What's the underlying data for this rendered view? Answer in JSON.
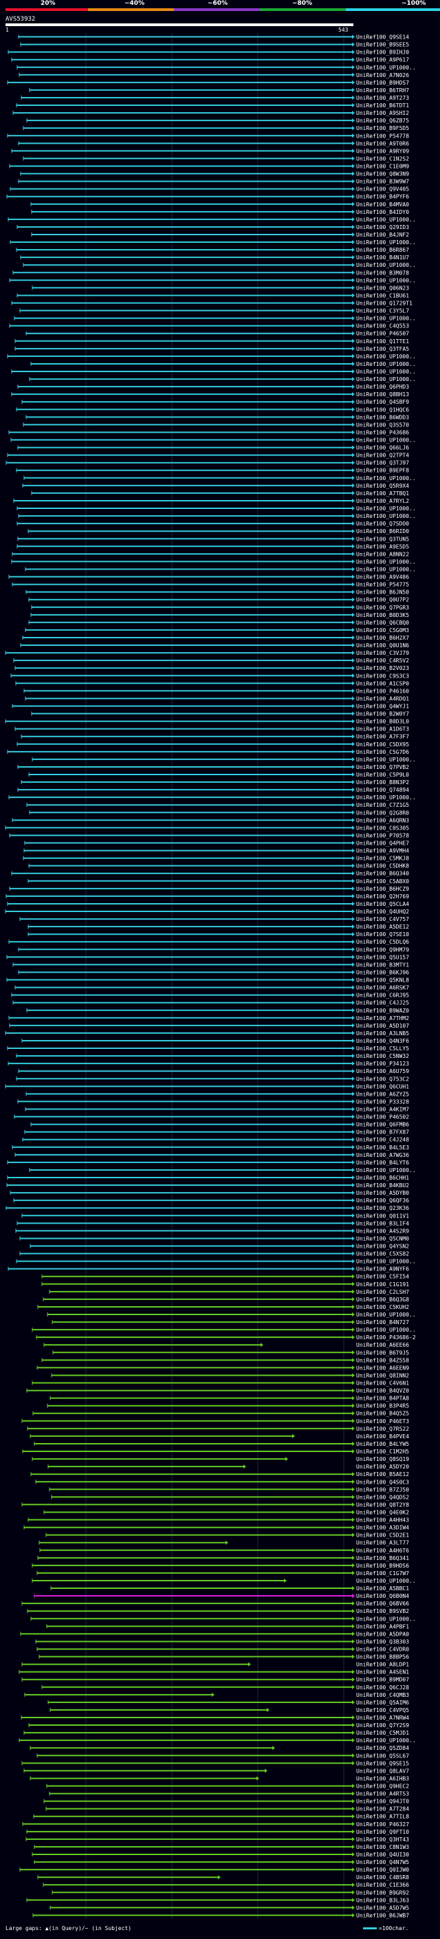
{
  "header": {
    "scale_labels": [
      "20%",
      "~40%",
      "~60%",
      "~80%",
      "~100%"
    ],
    "scale_colors": [
      "#e8102a",
      "#e88a12",
      "#8a38c8",
      "#1aa832",
      "#2ad0e6"
    ],
    "query_id": "AVS53932",
    "query_start": "1",
    "query_end": "543"
  },
  "footer": {
    "gaps_text": "Large gaps: ▲(in Query)/~ (in Subject)",
    "legend_text": "=100char."
  },
  "chart_data": {
    "type": "alignment",
    "query_length": 543,
    "row_labels": [
      "UniRef100_Q9SE14",
      "UniRef100_B9SEE5",
      "UniRef100_B9IHJ0",
      "UniRef100_A9P617",
      "UniRef100_UP1000..",
      "UniRef100_A7N026",
      "UniRef100_B9HDS7",
      "UniRef100_B6TRH7",
      "UniRef100_A9T273",
      "UniRef100_B6TDT1",
      "UniRef100_A9SHI2",
      "UniRef100_Q6ZB75",
      "UniRef100_B9F5D5",
      "UniRef100_P54778",
      "UniRef100_A9T0R6",
      "UniRef100_A9RY09",
      "UniRef100_C1N2S2",
      "UniRef100_C1E0M9",
      "UniRef100_Q8W3N9",
      "UniRef100_B3W9W7",
      "UniRef100_Q9V405",
      "UniRef100_B4PYF6",
      "UniRef100_B4MVA0",
      "UniRef100_B4IDY0",
      "UniRef100_UP1000..",
      "UniRef100_Q29ID3",
      "UniRef100_B4JNF2",
      "UniRef100_UP1000..",
      "UniRef100_B6R867",
      "UniRef100_B4N1U7",
      "UniRef100_UP1000..",
      "UniRef100_B3M078",
      "UniRef100_UP1000..",
      "UniRef100_Q06N23",
      "UniRef100_C1BU61",
      "UniRef100_Q1729T1",
      "UniRef100_C3Y5L7",
      "UniRef100_UP1000..",
      "UniRef100_C4Q553",
      "UniRef100_P46507",
      "UniRef100_Q1TTE1",
      "UniRef100_Q3TFA5",
      "UniRef100_UP1000..",
      "UniRef100_UP1000..",
      "UniRef100_UP1000..",
      "UniRef100_UP1000..",
      "UniRef100_Q6PHD3",
      "UniRef100_Q8BH13",
      "UniRef100_Q4SBF9",
      "UniRef100_Q1HQC6",
      "UniRef100_B6WDD3",
      "UniRef100_Q3S570",
      "UniRef100_P43686",
      "UniRef100_UP1000..",
      "UniRef100_Q66LJ6",
      "UniRef100_Q2TPT4",
      "UniRef100_Q3TJ97",
      "UniRef100_B9EPF8",
      "UniRef100_UP1000..",
      "UniRef100_Q5R9X4",
      "UniRef100_A7TBQ1",
      "UniRef100_A7RYL2",
      "UniRef100_UP1000..",
      "UniRef100_UP1000..",
      "UniRef100_Q7SDO0",
      "UniRef100_B6RID0",
      "UniRef100_Q3TUN5",
      "UniRef100_A9E5D5",
      "UniRef100_A8NN22",
      "UniRef100_UP1000..",
      "UniRef100_UP1000..",
      "UniRef100_A9V486",
      "UniRef100_P54775",
      "UniRef100_B6JN50",
      "UniRef100_Q0U7P2",
      "UniRef100_Q7PGR3",
      "UniRef100_B0D3K5",
      "UniRef100_Q6CBQ0",
      "UniRef100_C5G0M3",
      "UniRef100_B6H2X7",
      "UniRef100_Q0U1N6",
      "UniRef100_C3VJ79",
      "UniRef100_C4R5V2",
      "UniRef100_B2V023",
      "UniRef100_C9S3C3",
      "UniRef100_A1CSP0",
      "UniRef100_P46160",
      "UniRef100_A4RDQ1",
      "UniRef100_Q4WYJ1",
      "UniRef100_B2W0Y7",
      "UniRef100_B0D3L0",
      "UniRef100_A1D6T3",
      "UniRef100_A7F3F7",
      "UniRef100_C5DX95",
      "UniRef100_C5G7D6",
      "UniRef100_UP1000..",
      "UniRef100_Q7PVB2",
      "UniRef100_C5P9L0",
      "UniRef100_B8N3P2",
      "UniRef100_Q74894",
      "UniRef100_UP1000..",
      "UniRef100_C7Z1G5",
      "UniRef100_Q2G8R0",
      "UniRef100_A6QRN3",
      "UniRef100_C0S305",
      "UniRef100_P70578",
      "UniRef100_Q4PHE7",
      "UniRef100_A9VMH4",
      "UniRef100_C5MKJ8",
      "UniRef100_C5DHK8",
      "UniRef100_B6Q340",
      "UniRef100_C5ABX0",
      "UniRef100_B6HCZ9",
      "UniRef100_Q2H769",
      "UniRef100_Q5CLA4",
      "UniRef100_Q4UHQ2",
      "UniRef100_C4V757",
      "UniRef100_A5DE12",
      "UniRef100_Q7SE10",
      "UniRef100_C5DLQ6",
      "UniRef100_Q9HM79",
      "UniRef100_Q5U157",
      "UniRef100_B3MTY1",
      "UniRef100_B6KJ96",
      "UniRef100_Q5KNL8",
      "UniRef100_A6RSK7",
      "UniRef100_C6RJ95",
      "UniRef100_C4JJ25",
      "UniRef100_B9WAZ0",
      "UniRef100_A7THM2",
      "UniRef100_A5D107",
      "UniRef100_A3LNB5",
      "UniRef100_Q4N3F6",
      "UniRef100_C5LLY5",
      "UniRef100_C5NW32",
      "UniRef100_P34123",
      "UniRef100_A6U759",
      "UniRef100_Q753C2",
      "UniRef100_Q6CUH1",
      "UniRef100_A6ZYZ5",
      "UniRef100_P33328",
      "UniRef100_A4KIM7",
      "UniRef100_P46502",
      "UniRef100_Q6FMB6",
      "UniRef100_B7FX87",
      "UniRef100_C4J248",
      "UniRef100_B4L5E3",
      "UniRef100_A7WG36",
      "UniRef100_B4LYT6",
      "UniRef100_UP1000..",
      "UniRef100_B6CHH1",
      "UniRef100_B4KBU2",
      "UniRef100_A5DYB0",
      "UniRef100_Q6QF36",
      "UniRef100_Q23K36",
      "UniRef100_Q011V1",
      "UniRef100_B3LIF4",
      "UniRef100_A4S2R9",
      "UniRef100_Q5CNM0",
      "UniRef100_Q4YSN2",
      "UniRef100_C5XS82",
      "UniRef100_UP1000..",
      "UniRef100_A9NYF6",
      "UniRef100_C5FI54",
      "UniRef100_C1G191",
      "UniRef100_C2LSH7",
      "UniRef100_B6Q3G8",
      "UniRef100_C5KUH2",
      "UniRef100_UP1000..",
      "UniRef100_B4N727",
      "UniRef100_UP1000..",
      "UniRef100_P43686-2",
      "UniRef100_A6EE66",
      "UniRef100_B6T9J5",
      "UniRef100_B4Z558",
      "UniRef100_A6EEN9",
      "UniRef100_Q8INN2",
      "UniRef100_C4V6N1",
      "UniRef100_B4QVZ0",
      "UniRef100_B4PTA8",
      "UniRef100_B3P4R5",
      "UniRef100_B4Q5Z5",
      "UniRef100_P46ET3",
      "UniRef100_Q7RS22",
      "UniRef100_B4PVE4",
      "UniRef100_B4LYW5",
      "UniRef100_C1M2H5",
      "UniRef100_Q8SQ19",
      "UniRef100_A5DY20",
      "UniRef100_B5AE12",
      "UniRef100_Q4S0C3",
      "UniRef100_B7ZJ50",
      "UniRef100_Q4QDS2",
      "UniRef100_Q8T2Y8",
      "UniRef100_Q4E0K2",
      "UniRef100_A4HH43",
      "UniRef100_A3DIW4",
      "UniRef100_C5D2E1",
      "UniRef100_A3LT77",
      "UniRef100_A4H6T6",
      "UniRef100_B6Q341",
      "UniRef100_B9HDS6",
      "UniRef100_C1G7W7",
      "UniRef100_UP1000..",
      "UniRef100_A5BBC1",
      "UniRef100_Q6B0N4",
      "UniRef100_Q6BV66",
      "UniRef100_B9SVB2",
      "UniRef100_UP1000..",
      "UniRef100_A4PBF1",
      "UniRef100_A5DPA0",
      "UniRef100_Q3B303",
      "UniRef100_C4VDR0",
      "UniRef100_B8BP56",
      "UniRef100_A8LDP1",
      "UniRef100_A4SEN1",
      "UniRef100_B9MD07",
      "UniRef100_Q6CJ28",
      "UniRef100_C4QMB3",
      "UniRef100_Q5AIM6",
      "UniRef100_C4VPQ5",
      "UniRef100_A7NRW4",
      "UniRef100_Q7Y2S9",
      "UniRef100_C5MJD1",
      "UniRef100_UP1000..",
      "UniRef100_Q5ZD84",
      "UniRef100_Q5SL67",
      "UniRef100_Q9SE15",
      "UniRef100_Q8LAV7",
      "UniRef100_A6IHB3",
      "UniRef100_Q9HEC2",
      "UniRef100_A4RTS3",
      "UniRef100_Q94JT0",
      "UniRef100_A7T284",
      "UniRef100_A7TIL8",
      "UniRef100_P46327",
      "UniRef100_Q9FT10",
      "UniRef100_Q3HT43",
      "UniRef100_C8N1W3",
      "UniRef100_Q4UI30",
      "UniRef100_Q4N7W5",
      "UniRef100_Q0IJW0",
      "UniRef100_C4BSR8",
      "UniRef100_C1E366",
      "UniRef100_B9GR92",
      "UniRef100_B3LJ63",
      "UniRef100_A5D7W5",
      "UniRef100_B6JWB7"
    ],
    "cyan_rows": 163,
    "magenta_rows": [
      205
    ]
  }
}
